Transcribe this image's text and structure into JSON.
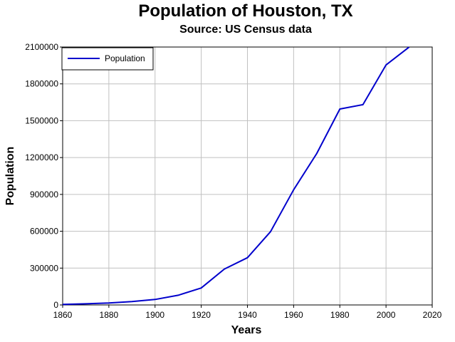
{
  "chart_data": {
    "type": "line",
    "title": "Population of Houston, TX",
    "subtitle": "Source: US Census data",
    "xlabel": "Years",
    "ylabel": "Population",
    "xlim": [
      1860,
      2020
    ],
    "ylim": [
      0,
      2100000
    ],
    "x_ticks": [
      1860,
      1880,
      1900,
      1920,
      1940,
      1960,
      1980,
      2000,
      2020
    ],
    "y_ticks": [
      0,
      300000,
      600000,
      900000,
      1200000,
      1500000,
      1800000,
      2100000
    ],
    "grid": true,
    "legend_position": "top-left",
    "series": [
      {
        "name": "Population",
        "color": "#0000cc",
        "x": [
          1860,
          1870,
          1880,
          1890,
          1900,
          1910,
          1920,
          1930,
          1940,
          1950,
          1960,
          1970,
          1980,
          1990,
          2000,
          2010
        ],
        "y": [
          4845,
          9332,
          16513,
          27557,
          44633,
          78800,
          138276,
          292352,
          384514,
          596163,
          938219,
          1232802,
          1595138,
          1630553,
          1953631,
          2099451
        ]
      }
    ]
  }
}
